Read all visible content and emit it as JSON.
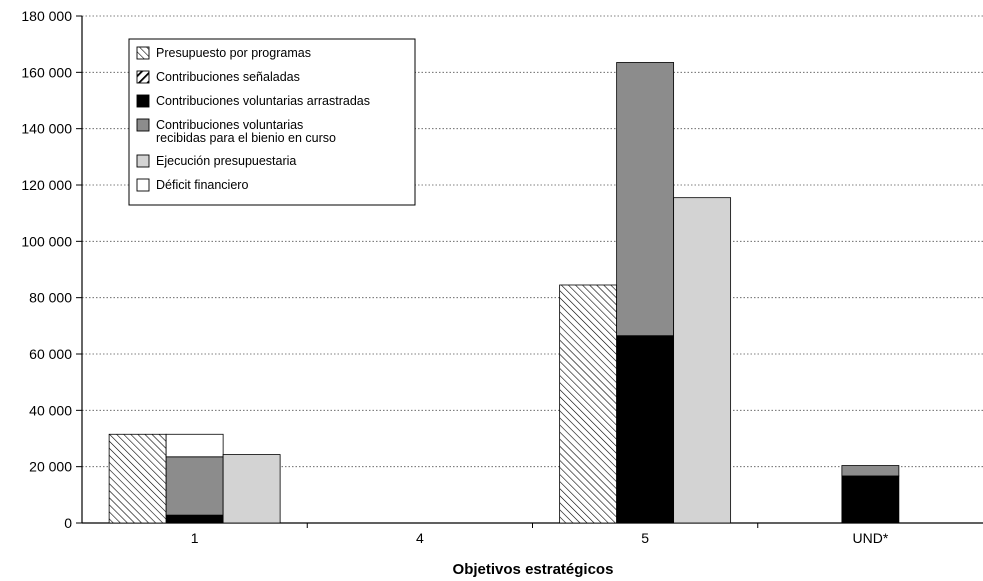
{
  "chart_data": {
    "type": "bar",
    "title": "",
    "xlabel": "Objetivos estratégicos",
    "ylabel": "",
    "ylim": [
      0,
      180000
    ],
    "yticks": [
      0,
      20000,
      40000,
      60000,
      80000,
      100000,
      120000,
      140000,
      160000,
      180000
    ],
    "ytick_labels": [
      "0",
      "20 000",
      "40 000",
      "60 000",
      "80 000",
      "100 000",
      "120 000",
      "140 000",
      "160 000",
      "180 000"
    ],
    "grid": true,
    "legend_position": "top-left",
    "categories": [
      "1",
      "4",
      "5",
      "UND*"
    ],
    "groups": [
      {
        "name": "presupuesto",
        "stacked": false
      },
      {
        "name": "financiacion",
        "stacked": true
      },
      {
        "name": "ejecucion",
        "stacked": false
      }
    ],
    "series": [
      {
        "name": "Presupuesto por programas",
        "group": "presupuesto",
        "pattern": "hatch-diag",
        "values": [
          31500,
          0,
          84500,
          0
        ]
      },
      {
        "name": "Contribuciones señaladas",
        "group": "financiacion",
        "pattern": "hatch-diag-black",
        "values": [
          0,
          0,
          0,
          0
        ]
      },
      {
        "name": "Contribuciones voluntarias arrastradas",
        "group": "financiacion",
        "color": "#000000",
        "values": [
          2800,
          0,
          66500,
          16700
        ]
      },
      {
        "name": "Contribuciones voluntarias recibidas para el bienio en curso",
        "group": "financiacion",
        "color": "#8c8c8c",
        "values": [
          20700,
          0,
          97000,
          3700
        ]
      },
      {
        "name": "Ejecución presupuestaria",
        "group": "ejecucion",
        "color": "#d3d3d3",
        "values": [
          24300,
          0,
          115500,
          0
        ]
      },
      {
        "name": "Déficit financiero",
        "group": "financiacion",
        "color": "#ffffff",
        "values": [
          8000,
          0,
          0,
          0
        ]
      }
    ],
    "legend": [
      {
        "lines": [
          "Presupuesto por programas"
        ],
        "swatch": "hatch-diag"
      },
      {
        "lines": [
          "Contribuciones señaladas"
        ],
        "swatch": "hatch-diag-black"
      },
      {
        "lines": [
          "Contribuciones voluntarias arrastradas"
        ],
        "swatch": "#000000"
      },
      {
        "lines": [
          "Contribuciones voluntarias",
          "recibidas para el bienio en curso"
        ],
        "swatch": "#8c8c8c"
      },
      {
        "lines": [
          "Ejecución presupuestaria"
        ],
        "swatch": "#d3d3d3"
      },
      {
        "lines": [
          "Déficit financiero"
        ],
        "swatch": "#ffffff"
      }
    ]
  }
}
